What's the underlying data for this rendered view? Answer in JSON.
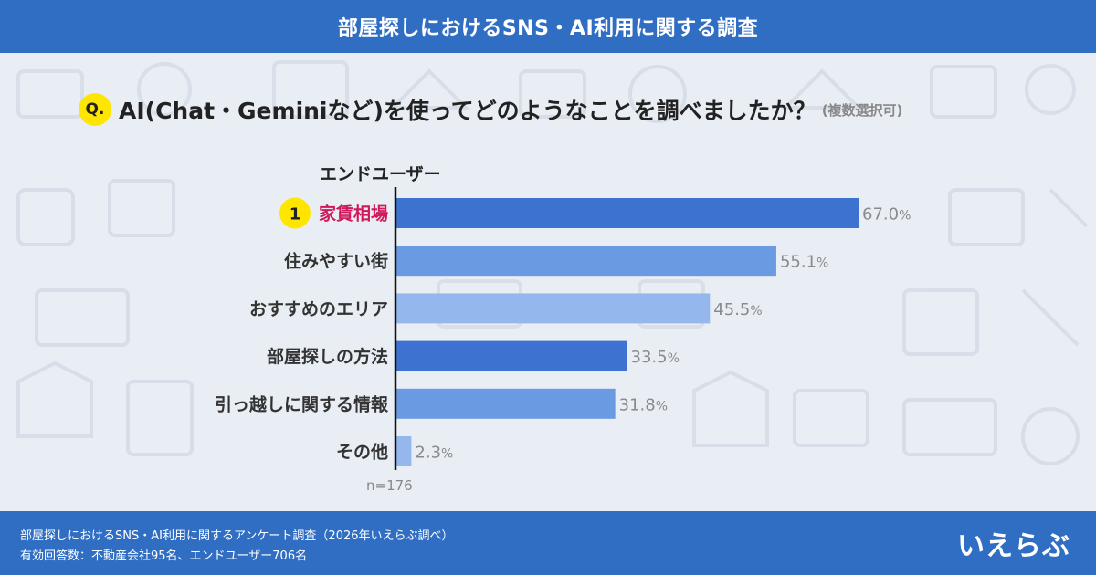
{
  "header": {
    "title": "部屋探しにおけるSNS・AI利用に関する調査"
  },
  "question": {
    "badge": "Q.",
    "text": "AI(Chat・Geminiなど)を使ってどのようなことを調べましたか？",
    "note": "(複数選択可)"
  },
  "group_label": "エンドユーザー",
  "rank_badge": "1",
  "footer": {
    "line1": "部屋探しにおけるSNS・AI利用に関するアンケート調査（2026年いえらぶ調べ）",
    "line2": "有効回答数：不動産会社95名、エンドユーザー706名"
  },
  "logo": "いえらぶ",
  "colors": {
    "header": "#2f6ec2",
    "highlight_label": "#d0185c",
    "bar_dark": "#3d72d0",
    "bar_mid": "#6a9be2",
    "bar_light": "#94b8ee",
    "value_text": "#8a8a8a"
  },
  "chart_data": {
    "type": "bar",
    "orientation": "horizontal",
    "categories": [
      "家賃相場",
      "住みやすい街",
      "おすすめのエリア",
      "部屋探しの方法",
      "引っ越しに関する情報",
      "その他"
    ],
    "values": [
      67.0,
      55.1,
      45.5,
      33.5,
      31.8,
      2.3
    ],
    "value_unit": "%",
    "value_labels": [
      "67.0",
      "55.1",
      "45.5",
      "33.5",
      "31.8",
      "2.3"
    ],
    "bar_colors": [
      "#3d72d0",
      "#6a9be2",
      "#94b8ee",
      "#3d72d0",
      "#6a9be2",
      "#94b8ee"
    ],
    "highlight_index": 0,
    "sample_size": "n=176",
    "xlim": [
      0,
      100
    ],
    "grid": false,
    "legend": "none"
  }
}
